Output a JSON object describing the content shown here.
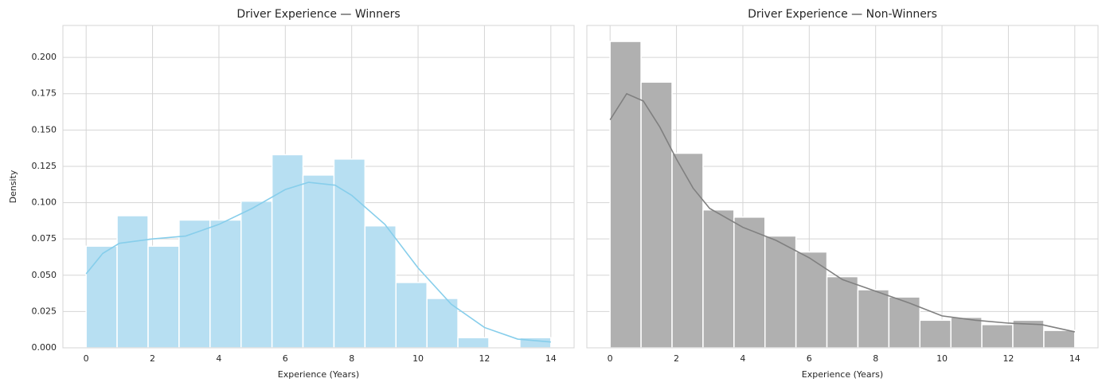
{
  "chart_data": [
    {
      "type": "histogram",
      "title": "Driver Experience — Winners",
      "xlabel": "Experience (Years)",
      "ylabel": "Density",
      "bins": [
        0,
        0.933,
        1.867,
        2.8,
        3.733,
        4.667,
        5.6,
        6.533,
        7.467,
        8.4,
        9.333,
        10.267,
        11.2,
        12.133,
        13.067,
        14
      ],
      "values": [
        0.07,
        0.091,
        0.07,
        0.088,
        0.088,
        0.101,
        0.133,
        0.119,
        0.13,
        0.084,
        0.045,
        0.034,
        0.007,
        0,
        0.007
      ],
      "color": "#b7dff2",
      "edge_color": "#ffffff",
      "kde": {
        "color": "#87ceeb",
        "x": [
          0,
          0.5,
          1,
          2,
          3,
          4,
          5,
          6,
          6.7,
          7.5,
          8,
          9,
          10,
          11,
          12,
          13,
          14
        ],
        "values": [
          0.051,
          0.065,
          0.072,
          0.075,
          0.077,
          0.085,
          0.096,
          0.109,
          0.114,
          0.112,
          0.105,
          0.085,
          0.055,
          0.03,
          0.014,
          0.006,
          0.004
        ]
      },
      "xlim": [
        -0.7,
        14.7
      ],
      "ylim": [
        0,
        0.222
      ],
      "xticks": [
        0,
        2,
        4,
        6,
        8,
        10,
        12,
        14
      ],
      "yticks": [
        {
          "value": 0,
          "label": "0.000"
        },
        {
          "value": 0.025,
          "label": "0.025"
        },
        {
          "value": 0.05,
          "label": "0.050"
        },
        {
          "value": 0.075,
          "label": "0.075"
        },
        {
          "value": 0.1,
          "label": "0.100"
        },
        {
          "value": 0.125,
          "label": "0.125"
        },
        {
          "value": 0.15,
          "label": "0.150"
        },
        {
          "value": 0.175,
          "label": "0.175"
        },
        {
          "value": 0.2,
          "label": "0.200"
        }
      ],
      "show_ytick_labels": true,
      "grid": true
    },
    {
      "type": "histogram",
      "title": "Driver Experience — Non-Winners",
      "xlabel": "Experience (Years)",
      "bins": [
        0,
        0.933,
        1.867,
        2.8,
        3.733,
        4.667,
        5.6,
        6.533,
        7.467,
        8.4,
        9.333,
        10.267,
        11.2,
        12.133,
        13.067,
        14
      ],
      "values": [
        0.211,
        0.183,
        0.134,
        0.095,
        0.09,
        0.077,
        0.066,
        0.049,
        0.04,
        0.035,
        0.019,
        0.021,
        0.016,
        0.019,
        0.012
      ],
      "color": "#b0b0b0",
      "edge_color": "#ffffff",
      "kde": {
        "color": "#808080",
        "x": [
          0,
          0.5,
          1,
          1.5,
          2,
          2.5,
          3,
          4,
          5,
          6,
          7,
          8,
          9,
          10,
          11,
          12,
          13,
          14
        ],
        "values": [
          0.157,
          0.175,
          0.17,
          0.152,
          0.13,
          0.11,
          0.096,
          0.083,
          0.074,
          0.062,
          0.047,
          0.039,
          0.031,
          0.022,
          0.019,
          0.017,
          0.016,
          0.011
        ]
      },
      "xlim": [
        -0.7,
        14.7
      ],
      "ylim": [
        0,
        0.222
      ],
      "xticks": [
        0,
        2,
        4,
        6,
        8,
        10,
        12,
        14
      ],
      "yticks": [
        0,
        0.025,
        0.05,
        0.075,
        0.1,
        0.125,
        0.15,
        0.175,
        0.2
      ],
      "show_ytick_labels": false,
      "grid": true
    }
  ]
}
